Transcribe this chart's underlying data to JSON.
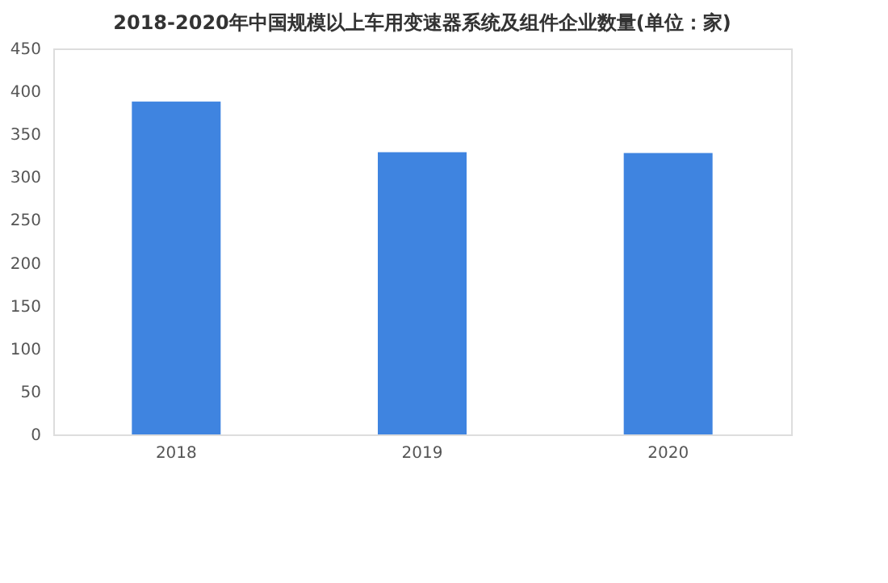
{
  "chart_data": {
    "type": "bar",
    "title": "2018-2020年中国规模以上车用变速器系统及组件企业数量(单位：家)",
    "categories": [
      "2018",
      "2019",
      "2020"
    ],
    "values": [
      388,
      329,
      328
    ],
    "color": "#3f84e0",
    "ylim": [
      0,
      450
    ],
    "yticks": [
      0,
      50,
      100,
      150,
      200,
      250,
      300,
      350,
      400,
      450
    ],
    "grid": false
  }
}
